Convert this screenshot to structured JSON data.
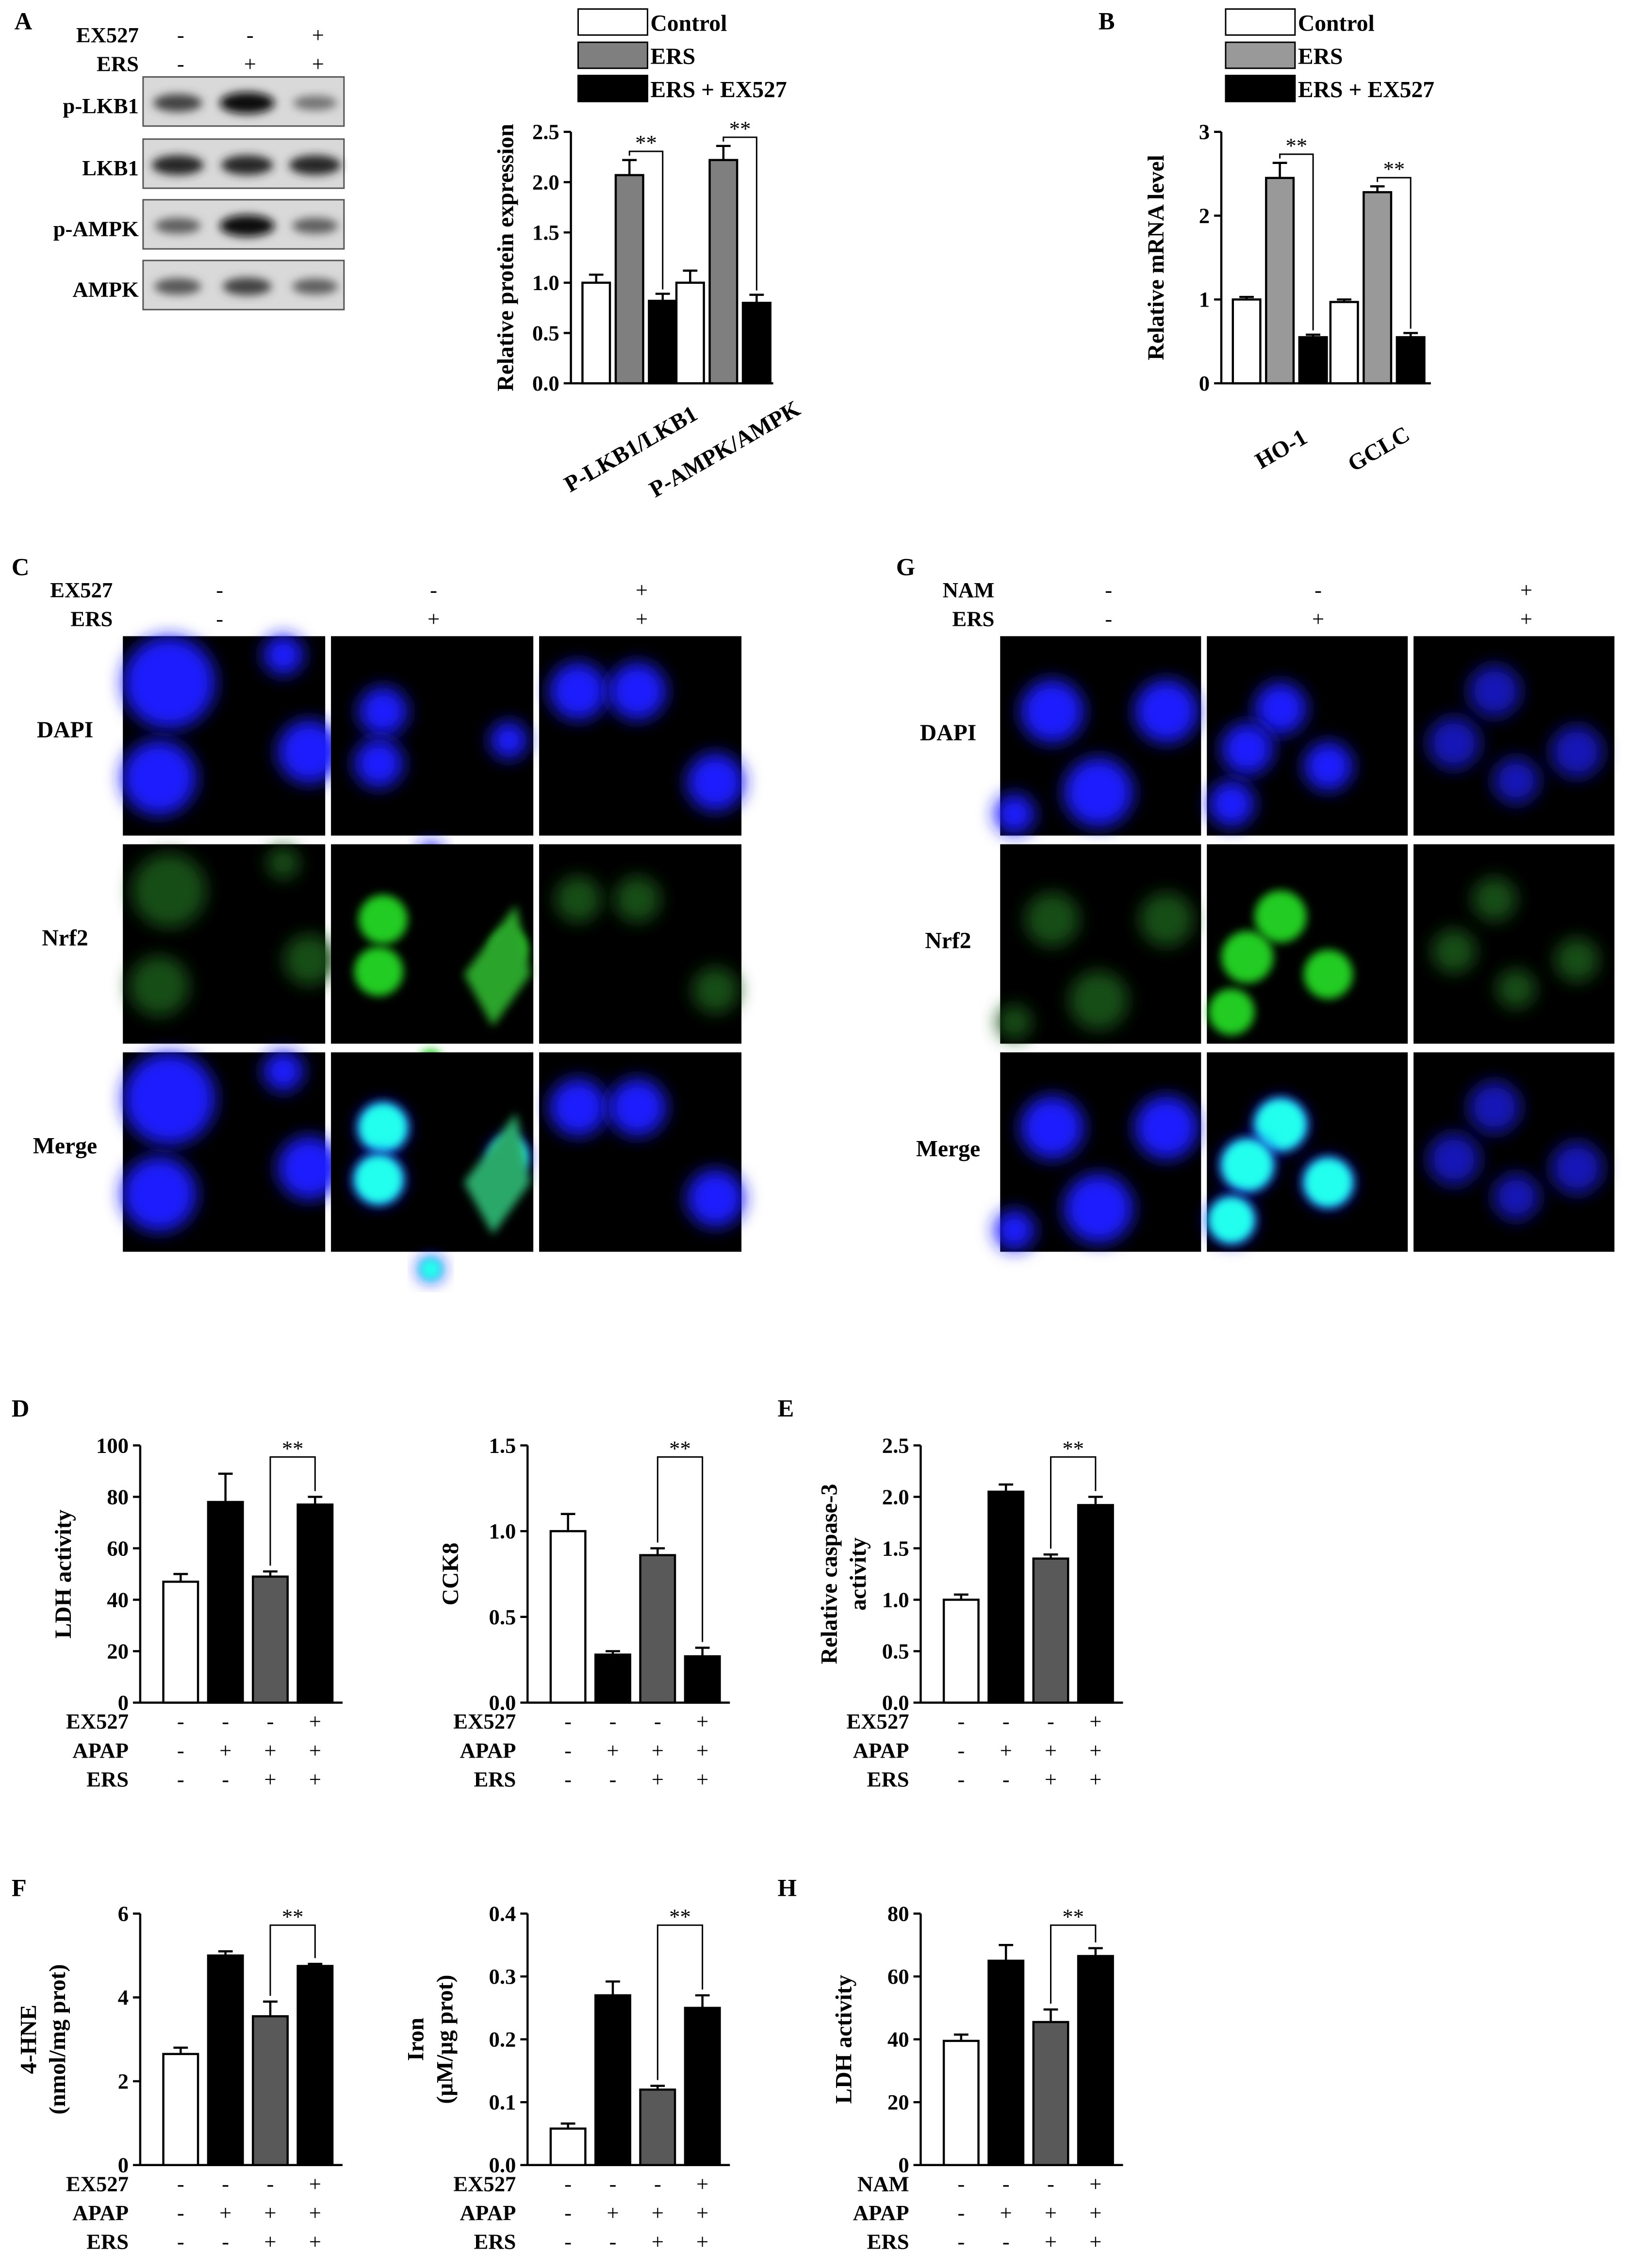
{
  "colors": {
    "control": "#ffffff",
    "ers": "#7f7f7f",
    "ers_gray_b": "#999999",
    "black": "#000000",
    "dapi": "#1a1aff",
    "nrf2": "#22cc22",
    "merge": "#22ffee"
  },
  "panel_letters": {
    "A": "A",
    "B": "B",
    "C": "C",
    "G": "G",
    "D": "D",
    "E": "E",
    "F": "F",
    "H": "H"
  },
  "legend": {
    "control": "Control",
    "ers": "ERS",
    "combo": "ERS + EX527"
  },
  "significance": "**",
  "blot": {
    "treatments": [
      {
        "name": "EX527",
        "signs": [
          "-",
          "-",
          "+"
        ]
      },
      {
        "name": "ERS",
        "signs": [
          "-",
          "+",
          "+"
        ]
      }
    ],
    "rows": [
      {
        "label": "p-LKB1",
        "intensity": [
          0.7,
          1.0,
          0.45
        ]
      },
      {
        "label": "LKB1",
        "intensity": [
          0.85,
          0.85,
          0.85
        ]
      },
      {
        "label": "p-AMPK",
        "intensity": [
          0.55,
          1.0,
          0.55
        ]
      },
      {
        "label": "AMPK",
        "intensity": [
          0.6,
          0.7,
          0.55
        ]
      }
    ]
  },
  "if_C": {
    "treatments": [
      {
        "name": "EX527",
        "signs": [
          "-",
          "-",
          "+"
        ]
      },
      {
        "name": "ERS",
        "signs": [
          "-",
          "+",
          "+"
        ]
      }
    ],
    "rows": [
      "DAPI",
      "Nrf2",
      "Merge"
    ]
  },
  "if_G": {
    "treatments": [
      {
        "name": "NAM",
        "signs": [
          "-",
          "-",
          "+"
        ]
      },
      {
        "name": "ERS",
        "signs": [
          "-",
          "+",
          "+"
        ]
      }
    ],
    "rows": [
      "DAPI",
      "Nrf2",
      "Merge"
    ]
  },
  "chart_data": [
    {
      "panel": "A",
      "type": "bar",
      "ylabel": "Relative protein expression",
      "categories": [
        "P-LKB1/LKB1",
        "P-AMPK/AMPK"
      ],
      "ylim": [
        0,
        2.5
      ],
      "yticks": [
        "0.0",
        "0.5",
        "1.0",
        "1.5",
        "2.0",
        "2.5"
      ],
      "series": [
        {
          "name": "Control",
          "values": [
            1.0,
            1.0
          ],
          "errors": [
            0.08,
            0.12
          ]
        },
        {
          "name": "ERS",
          "values": [
            2.07,
            2.22
          ],
          "errors": [
            0.15,
            0.14
          ]
        },
        {
          "name": "ERS + EX527",
          "values": [
            0.82,
            0.8
          ],
          "errors": [
            0.07,
            0.08
          ]
        }
      ]
    },
    {
      "panel": "B",
      "type": "bar",
      "ylabel": "Relative mRNA level",
      "categories": [
        "HO-1",
        "GCLC"
      ],
      "ylim": [
        0,
        3
      ],
      "yticks": [
        "0",
        "1",
        "2",
        "3"
      ],
      "series": [
        {
          "name": "Control",
          "values": [
            1.0,
            0.97
          ],
          "errors": [
            0.03,
            0.03
          ]
        },
        {
          "name": "ERS",
          "values": [
            2.45,
            2.28
          ],
          "errors": [
            0.18,
            0.07
          ]
        },
        {
          "name": "ERS + EX527",
          "values": [
            0.55,
            0.55
          ],
          "errors": [
            0.03,
            0.05
          ]
        }
      ]
    },
    {
      "panel": "D1",
      "type": "bar",
      "ylabel": "LDH activity",
      "ylim": [
        0,
        100
      ],
      "yticks": [
        "0",
        "20",
        "40",
        "60",
        "80",
        "100"
      ],
      "values": [
        47,
        78,
        49,
        77
      ],
      "errors": [
        3,
        11,
        2,
        3
      ],
      "treatments": [
        {
          "name": "EX527",
          "signs": [
            "-",
            "-",
            "-",
            "+"
          ]
        },
        {
          "name": "APAP",
          "signs": [
            "-",
            "+",
            "+",
            "+"
          ]
        },
        {
          "name": "ERS",
          "signs": [
            "-",
            "-",
            "+",
            "+"
          ]
        }
      ]
    },
    {
      "panel": "D2",
      "type": "bar",
      "ylabel": "CCK8",
      "ylim": [
        0,
        1.5
      ],
      "yticks": [
        "0.0",
        "0.5",
        "1.0",
        "1.5"
      ],
      "values": [
        1.0,
        0.28,
        0.86,
        0.27
      ],
      "errors": [
        0.1,
        0.02,
        0.04,
        0.05
      ],
      "treatments": [
        {
          "name": "EX527",
          "signs": [
            "-",
            "-",
            "-",
            "+"
          ]
        },
        {
          "name": "APAP",
          "signs": [
            "-",
            "+",
            "+",
            "+"
          ]
        },
        {
          "name": "ERS",
          "signs": [
            "-",
            "-",
            "+",
            "+"
          ]
        }
      ]
    },
    {
      "panel": "E",
      "type": "bar",
      "ylabel": "Relative caspase-3 activity",
      "ylim": [
        0,
        2.5
      ],
      "yticks": [
        "0.0",
        "0.5",
        "1.0",
        "1.5",
        "2.0",
        "2.5"
      ],
      "values": [
        1.0,
        2.05,
        1.4,
        1.92
      ],
      "errors": [
        0.05,
        0.07,
        0.04,
        0.08
      ],
      "treatments": [
        {
          "name": "EX527",
          "signs": [
            "-",
            "-",
            "-",
            "+"
          ]
        },
        {
          "name": "APAP",
          "signs": [
            "-",
            "+",
            "+",
            "+"
          ]
        },
        {
          "name": "ERS",
          "signs": [
            "-",
            "-",
            "+",
            "+"
          ]
        }
      ]
    },
    {
      "panel": "F1",
      "type": "bar",
      "ylabel": "4-HNE (nmol/mg prot)",
      "ylim": [
        0,
        6
      ],
      "yticks": [
        "0",
        "2",
        "4",
        "6"
      ],
      "values": [
        2.65,
        5.0,
        3.55,
        4.75
      ],
      "errors": [
        0.15,
        0.1,
        0.35,
        0.05
      ],
      "treatments": [
        {
          "name": "EX527",
          "signs": [
            "-",
            "-",
            "-",
            "+"
          ]
        },
        {
          "name": "APAP",
          "signs": [
            "-",
            "+",
            "+",
            "+"
          ]
        },
        {
          "name": "ERS",
          "signs": [
            "-",
            "-",
            "+",
            "+"
          ]
        }
      ]
    },
    {
      "panel": "F2",
      "type": "bar",
      "ylabel": "Iron (μM/μg prot)",
      "ylim": [
        0,
        0.4
      ],
      "yticks": [
        "0.0",
        "0.1",
        "0.2",
        "0.3",
        "0.4"
      ],
      "values": [
        0.058,
        0.27,
        0.12,
        0.25
      ],
      "errors": [
        0.008,
        0.022,
        0.006,
        0.02
      ],
      "treatments": [
        {
          "name": "EX527",
          "signs": [
            "-",
            "-",
            "-",
            "+"
          ]
        },
        {
          "name": "APAP",
          "signs": [
            "-",
            "+",
            "+",
            "+"
          ]
        },
        {
          "name": "ERS",
          "signs": [
            "-",
            "-",
            "+",
            "+"
          ]
        }
      ]
    },
    {
      "panel": "H",
      "type": "bar",
      "ylabel": "LDH activity",
      "ylim": [
        0,
        80
      ],
      "yticks": [
        "0",
        "20",
        "40",
        "60",
        "80"
      ],
      "values": [
        39.5,
        65,
        45.5,
        66.5
      ],
      "errors": [
        2,
        5,
        4,
        2.5
      ],
      "treatments": [
        {
          "name": "NAM",
          "signs": [
            "-",
            "-",
            "-",
            "+"
          ]
        },
        {
          "name": "APAP",
          "signs": [
            "-",
            "+",
            "+",
            "+"
          ]
        },
        {
          "name": "ERS",
          "signs": [
            "-",
            "-",
            "+",
            "+"
          ]
        }
      ]
    }
  ]
}
